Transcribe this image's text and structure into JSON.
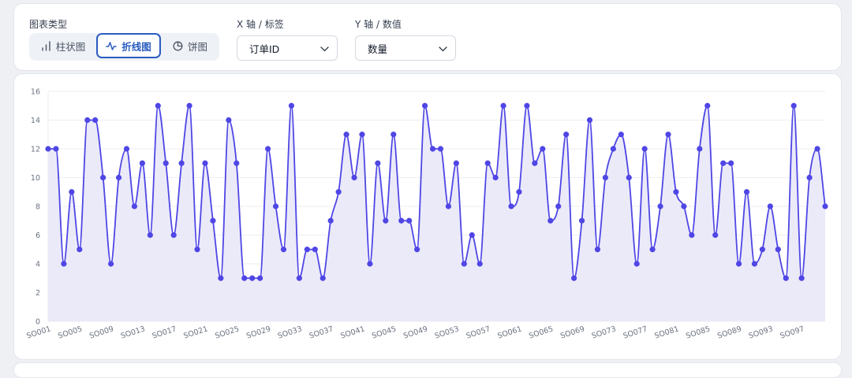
{
  "controls": {
    "chart_type_label": "图表类型",
    "chart_type_options": [
      {
        "label": "柱状图",
        "icon": "bar-chart-icon",
        "active": false
      },
      {
        "label": "折线图",
        "icon": "line-chart-icon",
        "active": true
      },
      {
        "label": "饼图",
        "icon": "pie-chart-icon",
        "active": false
      }
    ],
    "x_axis_label": "X 轴 / 标签",
    "x_axis_value": "订单ID",
    "y_axis_label": "Y 轴 / 数值",
    "y_axis_value": "数量"
  },
  "colors": {
    "line": "#4f46e5",
    "fill": "#e8e6f8",
    "accent": "#2a5cc0",
    "grid": "#eceef2"
  },
  "chart_data": {
    "type": "line",
    "curve": "smooth",
    "area_fill": true,
    "grid": "horizontal",
    "ylim": [
      0,
      16
    ],
    "yticks": [
      0,
      2,
      4,
      6,
      8,
      10,
      12,
      14,
      16
    ],
    "xlabel": "",
    "ylabel": "",
    "x_tick_labels": [
      "SO001",
      "SO005",
      "SO009",
      "SO013",
      "SO017",
      "SO021",
      "SO025",
      "SO029",
      "SO033",
      "SO037",
      "SO041",
      "SO045",
      "SO049",
      "SO053",
      "SO057",
      "SO061",
      "SO065",
      "SO069",
      "SO073",
      "SO077",
      "SO081",
      "SO085",
      "SO089",
      "SO093",
      "SO097"
    ],
    "values": [
      12,
      12,
      4,
      9,
      5,
      14,
      14,
      10,
      4,
      10,
      12,
      8,
      11,
      6,
      15,
      11,
      6,
      11,
      15,
      5,
      11,
      7,
      3,
      14,
      11,
      3,
      3,
      3,
      12,
      8,
      5,
      15,
      3,
      5,
      5,
      3,
      7,
      9,
      13,
      10,
      13,
      4,
      11,
      7,
      13,
      7,
      7,
      5,
      15,
      12,
      12,
      8,
      11,
      4,
      6,
      4,
      11,
      10,
      15,
      8,
      9,
      15,
      11,
      12,
      7,
      8,
      13,
      3,
      7,
      14,
      5,
      10,
      12,
      13,
      10,
      4,
      12,
      5,
      8,
      13,
      9,
      8,
      6,
      12,
      15,
      6,
      11,
      11,
      4,
      9,
      4,
      5,
      8,
      5,
      3,
      15,
      3,
      10,
      12,
      8
    ]
  }
}
